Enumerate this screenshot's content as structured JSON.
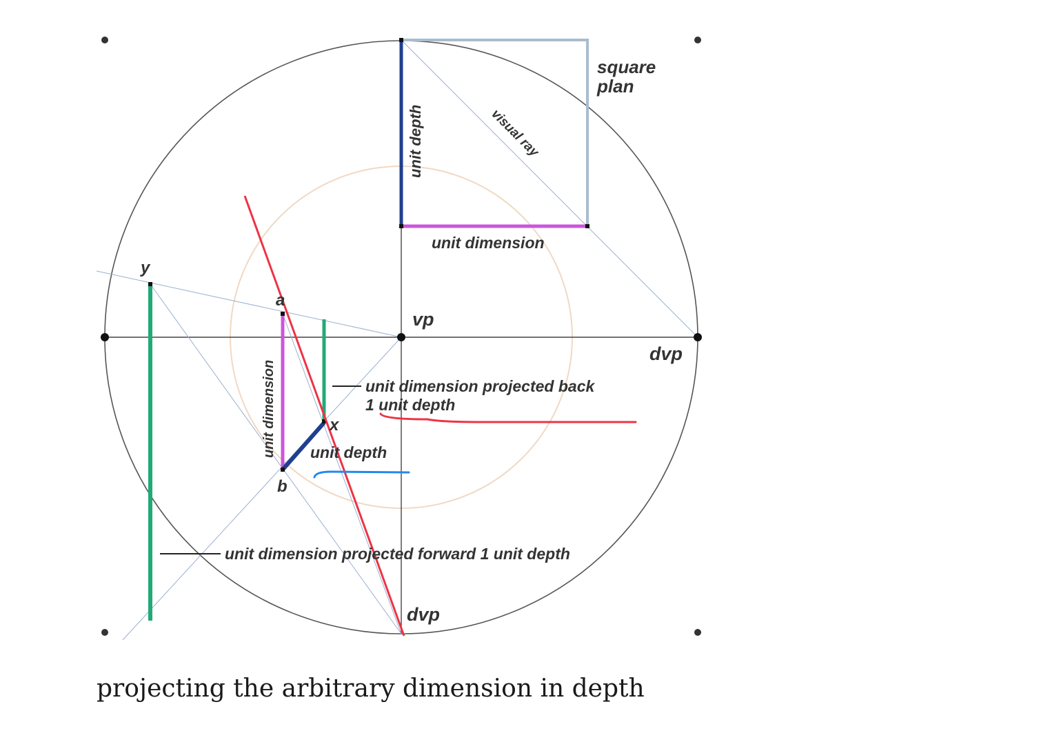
{
  "diagram": {
    "labels": {
      "square_plan_line1": "square",
      "square_plan_line2": "plan",
      "unit_depth_vertical": "unit depth",
      "visual_ray": "visual ray",
      "unit_dimension_top": "unit dimension",
      "point_y": "y",
      "point_a": "a",
      "vp": "vp",
      "dvp_right": "dvp",
      "projected_back_line1": "unit dimension projected back",
      "projected_back_line2": "1 unit depth",
      "point_x": "x",
      "unit_dimension_vertical": "unit dimension",
      "unit_depth_small": "unit depth",
      "point_b": "b",
      "projected_forward": "unit dimension projected forward 1 unit depth",
      "dvp_bottom": "dvp"
    },
    "colors": {
      "circle": "#555555",
      "inner_circle": "#f0d9c4",
      "axes": "#444444",
      "square_plan": "#a9bcd0",
      "unit_depth": "#1f3f8f",
      "unit_dimension": "#cc55dd",
      "green": "#22aa77",
      "visual_ray": "#9ab0d0",
      "red_annotation": "#ee3344",
      "blue_annotation": "#2288ee"
    }
  },
  "caption": "projecting the arbitrary dimension in depth"
}
